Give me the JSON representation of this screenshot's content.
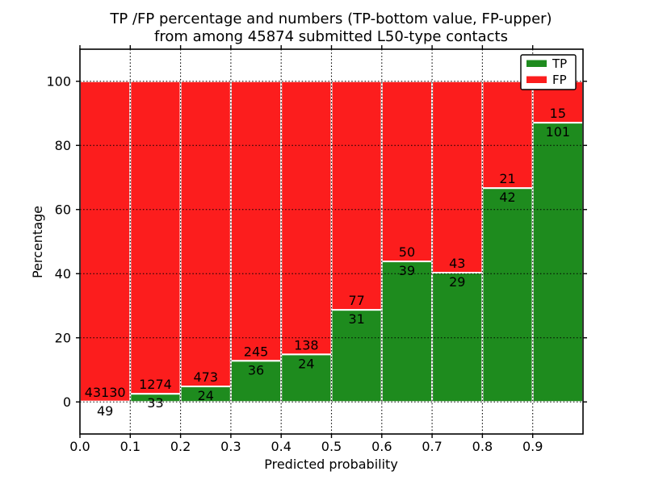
{
  "chart_data": {
    "type": "bar",
    "stacked": true,
    "title_line1": "TP /FP percentage and numbers (TP-bottom value, FP-upper)",
    "title_line2": "from among 45874 submitted L50-type contacts",
    "xlabel": "Predicted probability",
    "ylabel": "Percentage",
    "xlim": [
      0,
      1
    ],
    "ylim": [
      -10,
      110
    ],
    "x_ticks": [
      0.0,
      0.1,
      0.2,
      0.3,
      0.4,
      0.5,
      0.6,
      0.7,
      0.8,
      0.9
    ],
    "x_tick_labels": [
      "0.0",
      "0.1",
      "0.2",
      "0.3",
      "0.4",
      "0.5",
      "0.6",
      "0.7",
      "0.8",
      "0.9"
    ],
    "y_ticks": [
      0,
      20,
      40,
      60,
      80,
      100
    ],
    "y_tick_labels": [
      "0",
      "20",
      "40",
      "60",
      "80",
      "100"
    ],
    "grid": "dotted",
    "legend_position": "upper right",
    "series": [
      {
        "name": "TP",
        "color": "#1e8b1e",
        "role": "bottom-segment"
      },
      {
        "name": "FP",
        "color": "#fc1d1d",
        "role": "top-segment"
      }
    ],
    "bar_edge_color": "#ffffff",
    "bins": [
      {
        "range": "0.0-0.1",
        "tp": 49,
        "fp": 43130,
        "tp_pct": 0.11
      },
      {
        "range": "0.1-0.2",
        "tp": 33,
        "fp": 1274,
        "tp_pct": 2.52
      },
      {
        "range": "0.2-0.3",
        "tp": 24,
        "fp": 473,
        "tp_pct": 4.83
      },
      {
        "range": "0.3-0.4",
        "tp": 36,
        "fp": 245,
        "tp_pct": 12.81
      },
      {
        "range": "0.4-0.5",
        "tp": 24,
        "fp": 138,
        "tp_pct": 14.81
      },
      {
        "range": "0.5-0.6",
        "tp": 31,
        "fp": 77,
        "tp_pct": 28.7
      },
      {
        "range": "0.6-0.7",
        "tp": 39,
        "fp": 50,
        "tp_pct": 43.82
      },
      {
        "range": "0.7-0.8",
        "tp": 29,
        "fp": 43,
        "tp_pct": 40.28
      },
      {
        "range": "0.8-0.9",
        "tp": 42,
        "fp": 21,
        "tp_pct": 66.67
      },
      {
        "range": "0.9-1.0",
        "tp": 101,
        "fp": 15,
        "tp_pct": 87.07
      }
    ]
  }
}
